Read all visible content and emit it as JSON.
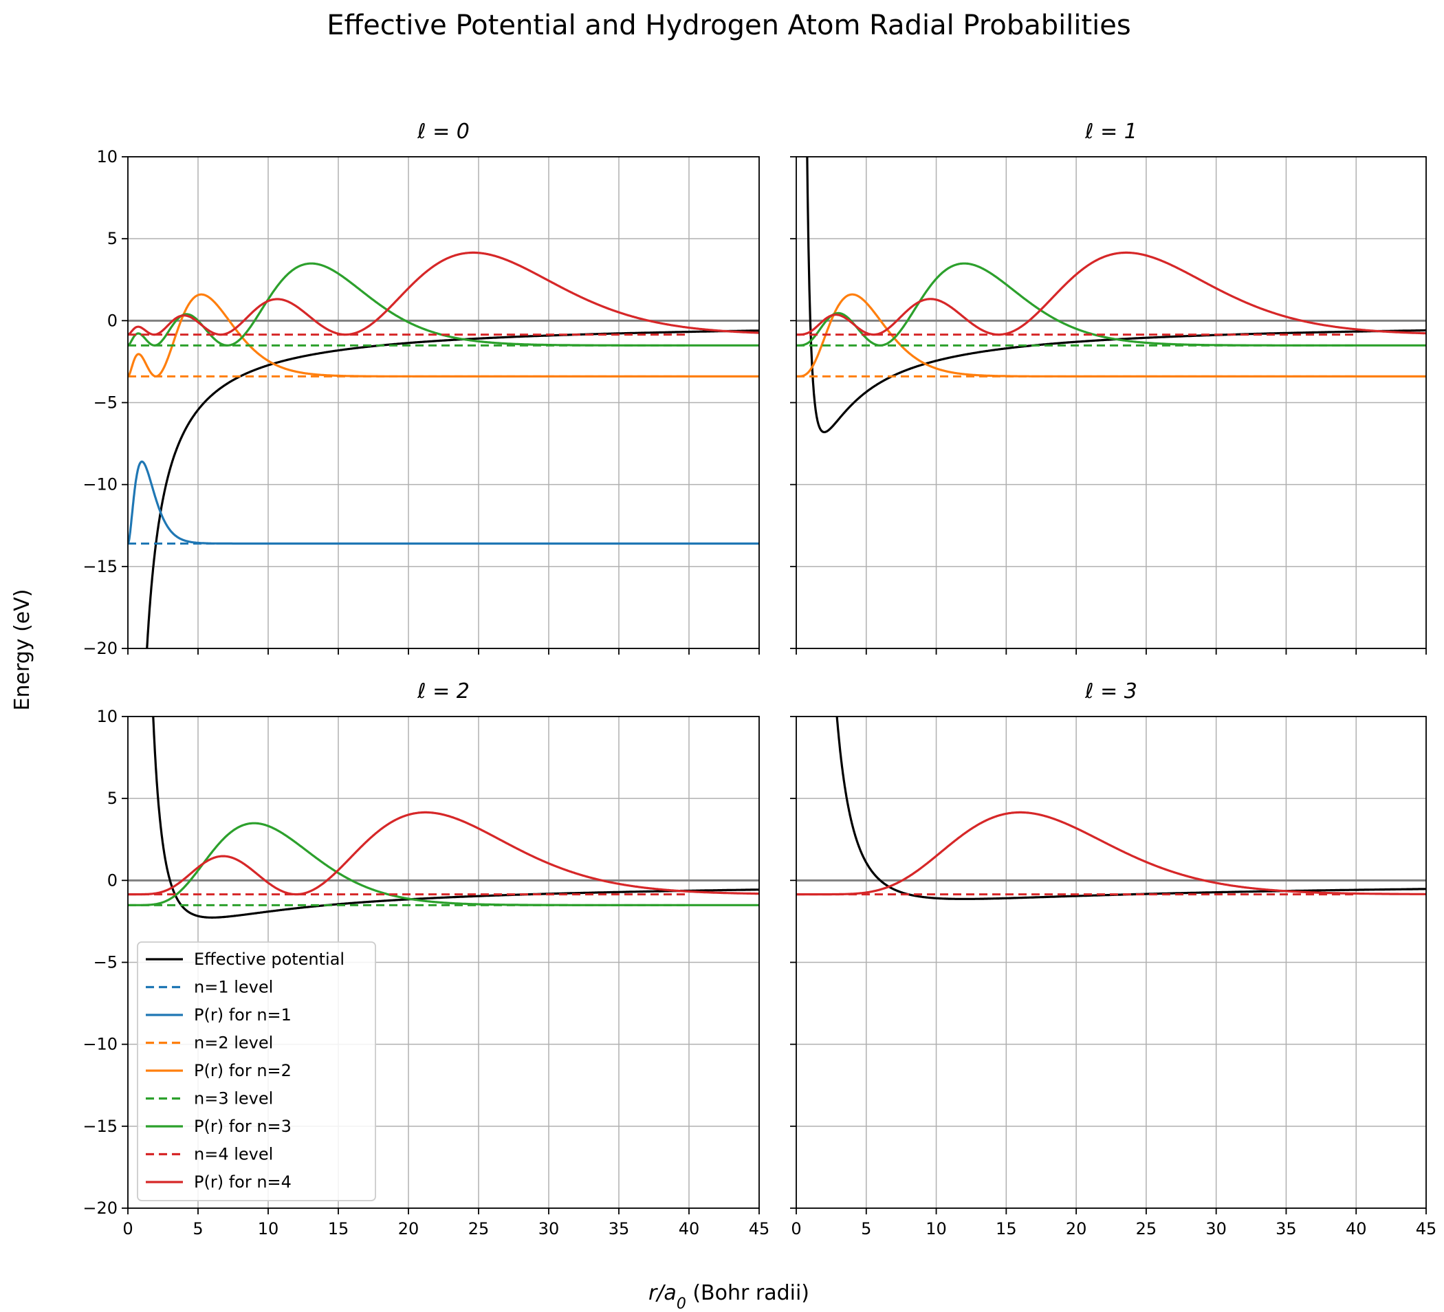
{
  "figure": {
    "title": "Effective Potential and Hydrogen Atom Radial Probabilities",
    "xlabel_var": "r/a",
    "xlabel_sub": "0",
    "xlabel_rest": " (Bohr radii)",
    "ylabel": "Energy (eV)"
  },
  "chart_data": {
    "type": "line",
    "layout": "2x2 grid, shared x and y axes",
    "xlim": [
      0,
      45
    ],
    "ylim": [
      -20,
      10
    ],
    "xticks": [
      0,
      5,
      10,
      15,
      20,
      25,
      30,
      35,
      40,
      45
    ],
    "yticks": [
      10,
      5,
      0,
      -5,
      -10,
      -15,
      -20
    ],
    "grid": true,
    "zero_line": true,
    "colors": {
      "potential": "#000000",
      "n1": "#1f77b4",
      "n2": "#ff7f0e",
      "n3": "#2ca02c",
      "n4": "#d62728",
      "zero_line": "#808080",
      "grid": "#b0b0b0"
    },
    "energy_levels_eV": {
      "1": -13.6,
      "2": -3.4,
      "3": -1.51,
      "4": -0.85
    },
    "radial_probability_peak_height_eV": 5,
    "panels": [
      {
        "subtitle": "ℓ = 0",
        "l": 0,
        "potential_min": null,
        "series": [
          {
            "name": "Effective potential",
            "kind": "potential"
          },
          {
            "name": "n=1 level",
            "kind": "level",
            "n": 1
          },
          {
            "name": "P(r) for n=1",
            "kind": "probability",
            "n": 1,
            "peak_r": 1.0
          },
          {
            "name": "n=2 level",
            "kind": "level",
            "n": 2
          },
          {
            "name": "P(r) for n=2",
            "kind": "probability",
            "n": 2,
            "peak_r": 5.2
          },
          {
            "name": "n=3 level",
            "kind": "level",
            "n": 3
          },
          {
            "name": "P(r) for n=3",
            "kind": "probability",
            "n": 3,
            "peak_r": 13.1
          },
          {
            "name": "n=4 level",
            "kind": "level",
            "n": 4
          },
          {
            "name": "P(r) for n=4",
            "kind": "probability",
            "n": 4,
            "peak_r": 24.7
          }
        ]
      },
      {
        "subtitle": "ℓ = 1",
        "l": 1,
        "potential_min": {
          "r": 2.0,
          "E": -6.8
        },
        "series": [
          {
            "name": "Effective potential",
            "kind": "potential"
          },
          {
            "name": "n=2 level",
            "kind": "level",
            "n": 2
          },
          {
            "name": "P(r) for n=2",
            "kind": "probability",
            "n": 2,
            "peak_r": 4.0
          },
          {
            "name": "n=3 level",
            "kind": "level",
            "n": 3
          },
          {
            "name": "P(r) for n=3",
            "kind": "probability",
            "n": 3,
            "peak_r": 12.0
          },
          {
            "name": "n=4 level",
            "kind": "level",
            "n": 4
          },
          {
            "name": "P(r) for n=4",
            "kind": "probability",
            "n": 4,
            "peak_r": 23.6
          }
        ]
      },
      {
        "subtitle": "ℓ = 2",
        "l": 2,
        "potential_min": {
          "r": 6.0,
          "E": -2.27
        },
        "series": [
          {
            "name": "Effective potential",
            "kind": "potential"
          },
          {
            "name": "n=3 level",
            "kind": "level",
            "n": 3
          },
          {
            "name": "P(r) for n=3",
            "kind": "probability",
            "n": 3,
            "peak_r": 9.0
          },
          {
            "name": "n=4 level",
            "kind": "level",
            "n": 4
          },
          {
            "name": "P(r) for n=4",
            "kind": "probability",
            "n": 4,
            "peak_r": 21.2
          }
        ]
      },
      {
        "subtitle": "ℓ = 3",
        "l": 3,
        "potential_min": {
          "r": 12.0,
          "E": -1.13
        },
        "series": [
          {
            "name": "Effective potential",
            "kind": "potential"
          },
          {
            "name": "n=4 level",
            "kind": "level",
            "n": 4
          },
          {
            "name": "P(r) for n=4",
            "kind": "probability",
            "n": 4,
            "peak_r": 16.0
          }
        ]
      }
    ],
    "legend": {
      "panel": 2,
      "placement": "lower-left",
      "entries": [
        {
          "label": "Effective potential",
          "color": "#000000",
          "dashed": false
        },
        {
          "label": "n=1 level",
          "color": "#1f77b4",
          "dashed": true
        },
        {
          "label": "P(r) for n=1",
          "color": "#1f77b4",
          "dashed": false
        },
        {
          "label": "n=2 level",
          "color": "#ff7f0e",
          "dashed": true
        },
        {
          "label": "P(r) for n=2",
          "color": "#ff7f0e",
          "dashed": false
        },
        {
          "label": "n=3 level",
          "color": "#2ca02c",
          "dashed": true
        },
        {
          "label": "P(r) for n=3",
          "color": "#2ca02c",
          "dashed": false
        },
        {
          "label": "n=4 level",
          "color": "#d62728",
          "dashed": true
        },
        {
          "label": "P(r) for n=4",
          "color": "#d62728",
          "dashed": false
        }
      ]
    }
  }
}
